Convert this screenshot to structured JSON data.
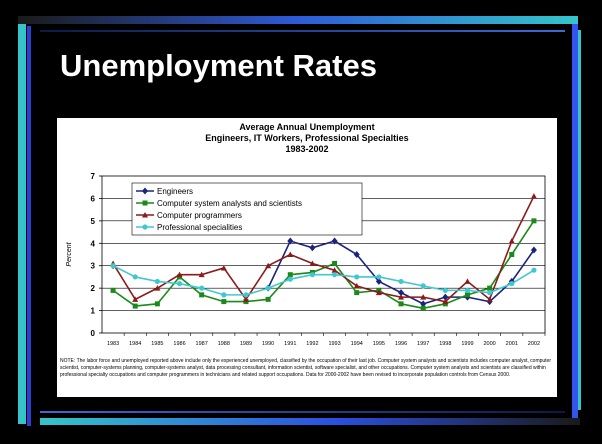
{
  "slide": {
    "title": "Unemployment Rates"
  },
  "colors": {
    "background": "#000000",
    "accent_blue": "#3355ee",
    "accent_teal": "#35c5c9",
    "text": "#ffffff"
  },
  "chart_data": {
    "type": "line",
    "title": [
      "Average Annual Unemployment",
      "Engineers, IT Workers, Professional Specialties",
      "1983-2002"
    ],
    "ylabel": "Percent",
    "xlabel": "",
    "ylim": [
      0,
      7
    ],
    "yticks": [
      0,
      1,
      2,
      3,
      4,
      5,
      6,
      7
    ],
    "grid": "horizontal",
    "legend_position": "top-left",
    "x": [
      "1983",
      "1984",
      "1985",
      "1986",
      "1987",
      "1988",
      "1989",
      "1990",
      "1991",
      "1992",
      "1993",
      "1994",
      "1995",
      "1996",
      "1997",
      "1998",
      "1999",
      "2000",
      "2001",
      "2002"
    ],
    "series": [
      {
        "name": "Engineers",
        "color": "#1a237e",
        "marker": "diamond",
        "values": [
          3.0,
          null,
          null,
          null,
          null,
          null,
          null,
          2.0,
          4.1,
          3.8,
          4.1,
          3.5,
          2.3,
          1.8,
          1.3,
          1.6,
          1.6,
          1.4,
          2.3,
          3.7
        ]
      },
      {
        "name": "Computer system analysts and scientists",
        "color": "#1a8a1a",
        "marker": "square",
        "values": [
          1.9,
          1.2,
          1.3,
          2.5,
          1.7,
          1.4,
          1.4,
          1.5,
          2.6,
          2.7,
          3.1,
          1.8,
          1.9,
          1.3,
          1.1,
          1.3,
          1.7,
          2.0,
          3.5,
          5.0
        ]
      },
      {
        "name": "Computer programmers",
        "color": "#8b1a1a",
        "marker": "triangle",
        "values": [
          3.1,
          1.5,
          2.0,
          2.6,
          2.6,
          2.9,
          1.5,
          3.0,
          3.5,
          3.1,
          2.8,
          2.1,
          1.8,
          1.6,
          1.6,
          1.4,
          2.3,
          1.5,
          4.1,
          6.1
        ]
      },
      {
        "name": "Professional specialities",
        "color": "#40c8d0",
        "marker": "circle",
        "values": [
          3.0,
          2.5,
          2.3,
          2.2,
          2.0,
          1.7,
          1.7,
          2.0,
          2.4,
          2.6,
          2.6,
          2.5,
          2.5,
          2.3,
          2.1,
          1.9,
          1.9,
          1.8,
          2.2,
          2.8
        ]
      }
    ],
    "note": "NOTE: The labor force and unemployed reported above include only the experienced unemployed, classified by the occupation of their last job. Computer system analysts and scientists includes computer analyst, computer scientist, computer-systems planning, computer-systems analyst, data processing consultant, information scientist, software specialist, and other occupations. Computer system analysts and scientists are classified within professional specialty occupations and computer programmers in technicians and related support occupations. Data for 2000-2002 have been revised to incorporate population controls from Census 2000."
  }
}
